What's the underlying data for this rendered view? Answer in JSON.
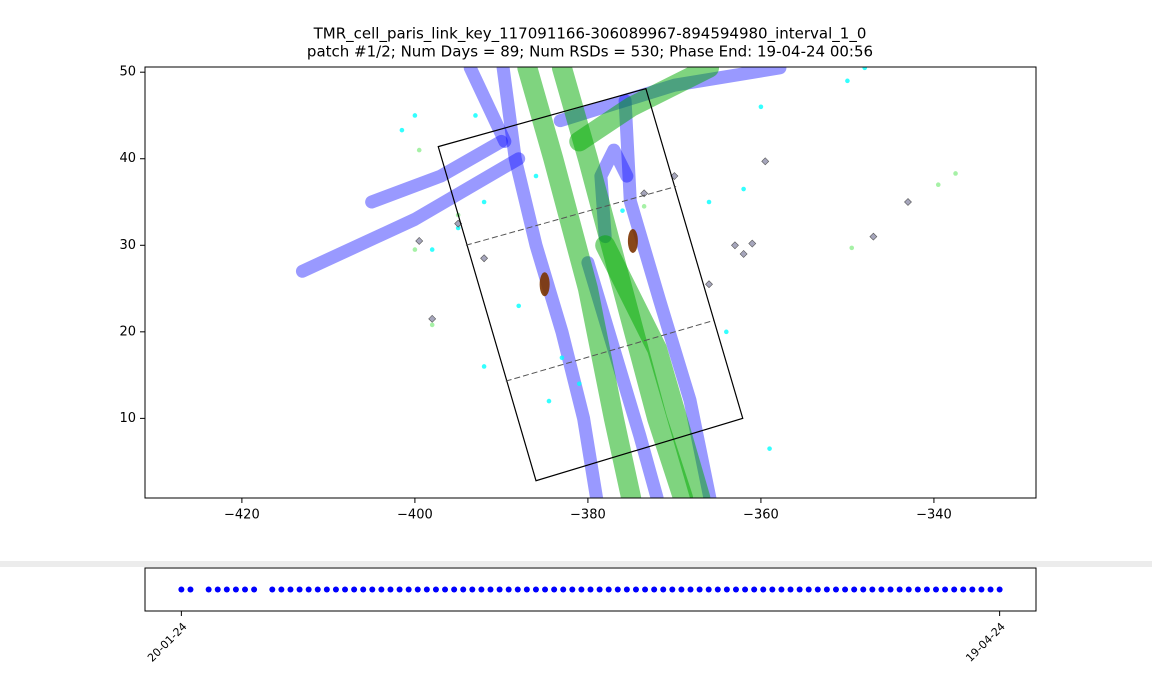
{
  "chart_data": [
    {
      "type": "scatter",
      "title": "TMR_cell_paris_link_key_117091166-306089967-894594980_interval_1_0",
      "subtitle": "patch #1/2;   Num Days = 89;    Num RSDs = 530;   Phase End: 19-04-24 00:56",
      "xlim": [
        -431.2,
        -328.2
      ],
      "ylim": [
        0.8,
        50.6
      ],
      "xticks": [
        {
          "value": -420,
          "label": "−420"
        },
        {
          "value": -400,
          "label": "−400"
        },
        {
          "value": -380,
          "label": "−380"
        },
        {
          "value": -360,
          "label": "−360"
        },
        {
          "value": -340,
          "label": "−340"
        }
      ],
      "yticks": [
        10,
        20,
        30,
        40,
        50
      ],
      "series": [
        {
          "mode": "line",
          "color": "#0000ff",
          "x": [
            -389.8,
            -388.4,
            -386,
            -383,
            -380.5,
            -379
          ],
          "y": [
            50.5,
            40,
            30,
            20,
            10,
            0.8
          ]
        },
        {
          "mode": "line",
          "color": "#0000ff",
          "x": [
            -380,
            -377,
            -374,
            -372
          ],
          "y": [
            28,
            18,
            8,
            0.8
          ]
        },
        {
          "mode": "line",
          "color": "#0000ff",
          "x": [
            -375.7,
            -375.1,
            -371.7,
            -368.2,
            -365.9
          ],
          "y": [
            46.7,
            35.1,
            23.6,
            12.1,
            0.8
          ]
        },
        {
          "mode": "line",
          "color": "#0000ff",
          "x": [
            -378,
            -378.5,
            -377,
            -375.5
          ],
          "y": [
            31,
            38,
            41,
            38
          ]
        },
        {
          "mode": "line",
          "color": "#0000ff",
          "x": [
            -388,
            -400,
            -413
          ],
          "y": [
            40,
            33,
            27
          ]
        },
        {
          "mode": "line",
          "color": "#0000ff",
          "x": [
            -390,
            -397,
            -405
          ],
          "y": [
            42,
            38,
            35
          ]
        },
        {
          "mode": "line",
          "color": "#0000ff",
          "x": [
            -383.2,
            -370,
            -357.8
          ],
          "y": [
            44.4,
            48.5,
            50.5
          ]
        },
        {
          "mode": "line",
          "color": "#0000ff",
          "x": [
            -393.6,
            -389.6
          ],
          "y": [
            50.5,
            42
          ]
        },
        {
          "mode": "line",
          "color": "#00aa00",
          "x": [
            -387,
            -384,
            -380,
            -377,
            -375
          ],
          "y": [
            50.5,
            40,
            25,
            10,
            0.8
          ]
        },
        {
          "mode": "line",
          "color": "#00aa00",
          "x": [
            -383,
            -380,
            -376,
            -372,
            -369
          ],
          "y": [
            50.5,
            40,
            25,
            10,
            0.8
          ]
        },
        {
          "mode": "line",
          "color": "#00aa00",
          "x": [
            -381,
            -375,
            -366
          ],
          "y": [
            42,
            46,
            50.5
          ]
        },
        {
          "mode": "line",
          "color": "#00aa00",
          "x": [
            -378,
            -372,
            -367
          ],
          "y": [
            30,
            18,
            0.8
          ]
        },
        {
          "mode": "markers",
          "marker": "circle",
          "color": "#00ffff",
          "x": [
            -401.5,
            -400,
            -393,
            -392,
            -386,
            -376,
            -366,
            -360,
            -362,
            -395,
            -398,
            -388,
            -383,
            -381,
            -359,
            -350,
            -364,
            -348,
            -392,
            -384.5
          ],
          "y": [
            43.3,
            45,
            45,
            35,
            38,
            34,
            35,
            46,
            36.5,
            32,
            29.5,
            23,
            17,
            14,
            6.5,
            49,
            20,
            50.5,
            16,
            12
          ]
        },
        {
          "mode": "markers",
          "marker": "diamond",
          "color": "#8080a0",
          "x": [
            -370,
            -359.5,
            -362,
            -363,
            -361,
            -366,
            -373.5,
            -347,
            -343,
            -398,
            -399.5,
            -392,
            -395
          ],
          "y": [
            38,
            39.7,
            29,
            30,
            30.2,
            25.5,
            36,
            31,
            35,
            21.5,
            30.5,
            28.5,
            32.5
          ]
        },
        {
          "mode": "markers",
          "marker": "circle",
          "color": "#90ee90",
          "x": [
            -337.5,
            -339.5,
            -349.5,
            -398,
            -400,
            -399.5,
            -395,
            -373.5
          ],
          "y": [
            38.3,
            37,
            29.7,
            20.8,
            29.5,
            41,
            33.5,
            34.5
          ]
        },
        {
          "mode": "markers",
          "marker": "blob",
          "color": "#7b3300",
          "x": [
            -385,
            -374.8
          ],
          "y": [
            25.5,
            30.5
          ]
        },
        {
          "mode": "polygon",
          "color": "#000000",
          "x": [
            -397.3,
            -373.3,
            -362.1,
            -386
          ],
          "y": [
            41.4,
            48.1,
            10,
            2.8
          ]
        },
        {
          "mode": "dashed",
          "color": "#555555",
          "x": [
            -394.1,
            -369.8
          ],
          "y": [
            30,
            36.8
          ]
        },
        {
          "mode": "dashed",
          "color": "#555555",
          "x": [
            -389.5,
            -365.5
          ],
          "y": [
            14.3,
            21.3
          ]
        }
      ]
    },
    {
      "type": "timeline",
      "color": "#0000ff",
      "xlim": [
        "16-01-24",
        "23-04-24"
      ],
      "xticks": [
        "20-01-24",
        "19-04-24"
      ],
      "x": [
        "20-01-24",
        "21-01-24",
        "23-01-24",
        "24-01-24",
        "25-01-24",
        "26-01-24",
        "27-01-24",
        "28-01-24",
        "30-01-24",
        "31-01-24",
        "01-02-24",
        "02-02-24",
        "03-02-24",
        "04-02-24",
        "05-02-24",
        "06-02-24",
        "07-02-24",
        "08-02-24",
        "09-02-24",
        "10-02-24",
        "11-02-24",
        "12-02-24",
        "13-02-24",
        "14-02-24",
        "15-02-24",
        "16-02-24",
        "17-02-24",
        "18-02-24",
        "19-02-24",
        "20-02-24",
        "21-02-24",
        "22-02-24",
        "23-02-24",
        "24-02-24",
        "25-02-24",
        "26-02-24",
        "27-02-24",
        "28-02-24",
        "29-02-24",
        "01-03-24",
        "02-03-24",
        "03-03-24",
        "04-03-24",
        "05-03-24",
        "06-03-24",
        "07-03-24",
        "08-03-24",
        "09-03-24",
        "10-03-24",
        "11-03-24",
        "12-03-24",
        "13-03-24",
        "14-03-24",
        "15-03-24",
        "16-03-24",
        "17-03-24",
        "18-03-24",
        "19-03-24",
        "20-03-24",
        "21-03-24",
        "22-03-24",
        "23-03-24",
        "24-03-24",
        "25-03-24",
        "26-03-24",
        "27-03-24",
        "28-03-24",
        "29-03-24",
        "30-03-24",
        "31-03-24",
        "01-04-24",
        "02-04-24",
        "03-04-24",
        "04-04-24",
        "05-04-24",
        "06-04-24",
        "07-04-24",
        "08-04-24",
        "09-04-24",
        "10-04-24",
        "11-04-24",
        "12-04-24",
        "13-04-24",
        "14-04-24",
        "15-04-24",
        "16-04-24",
        "17-04-24",
        "18-04-24",
        "19-04-24"
      ]
    }
  ]
}
